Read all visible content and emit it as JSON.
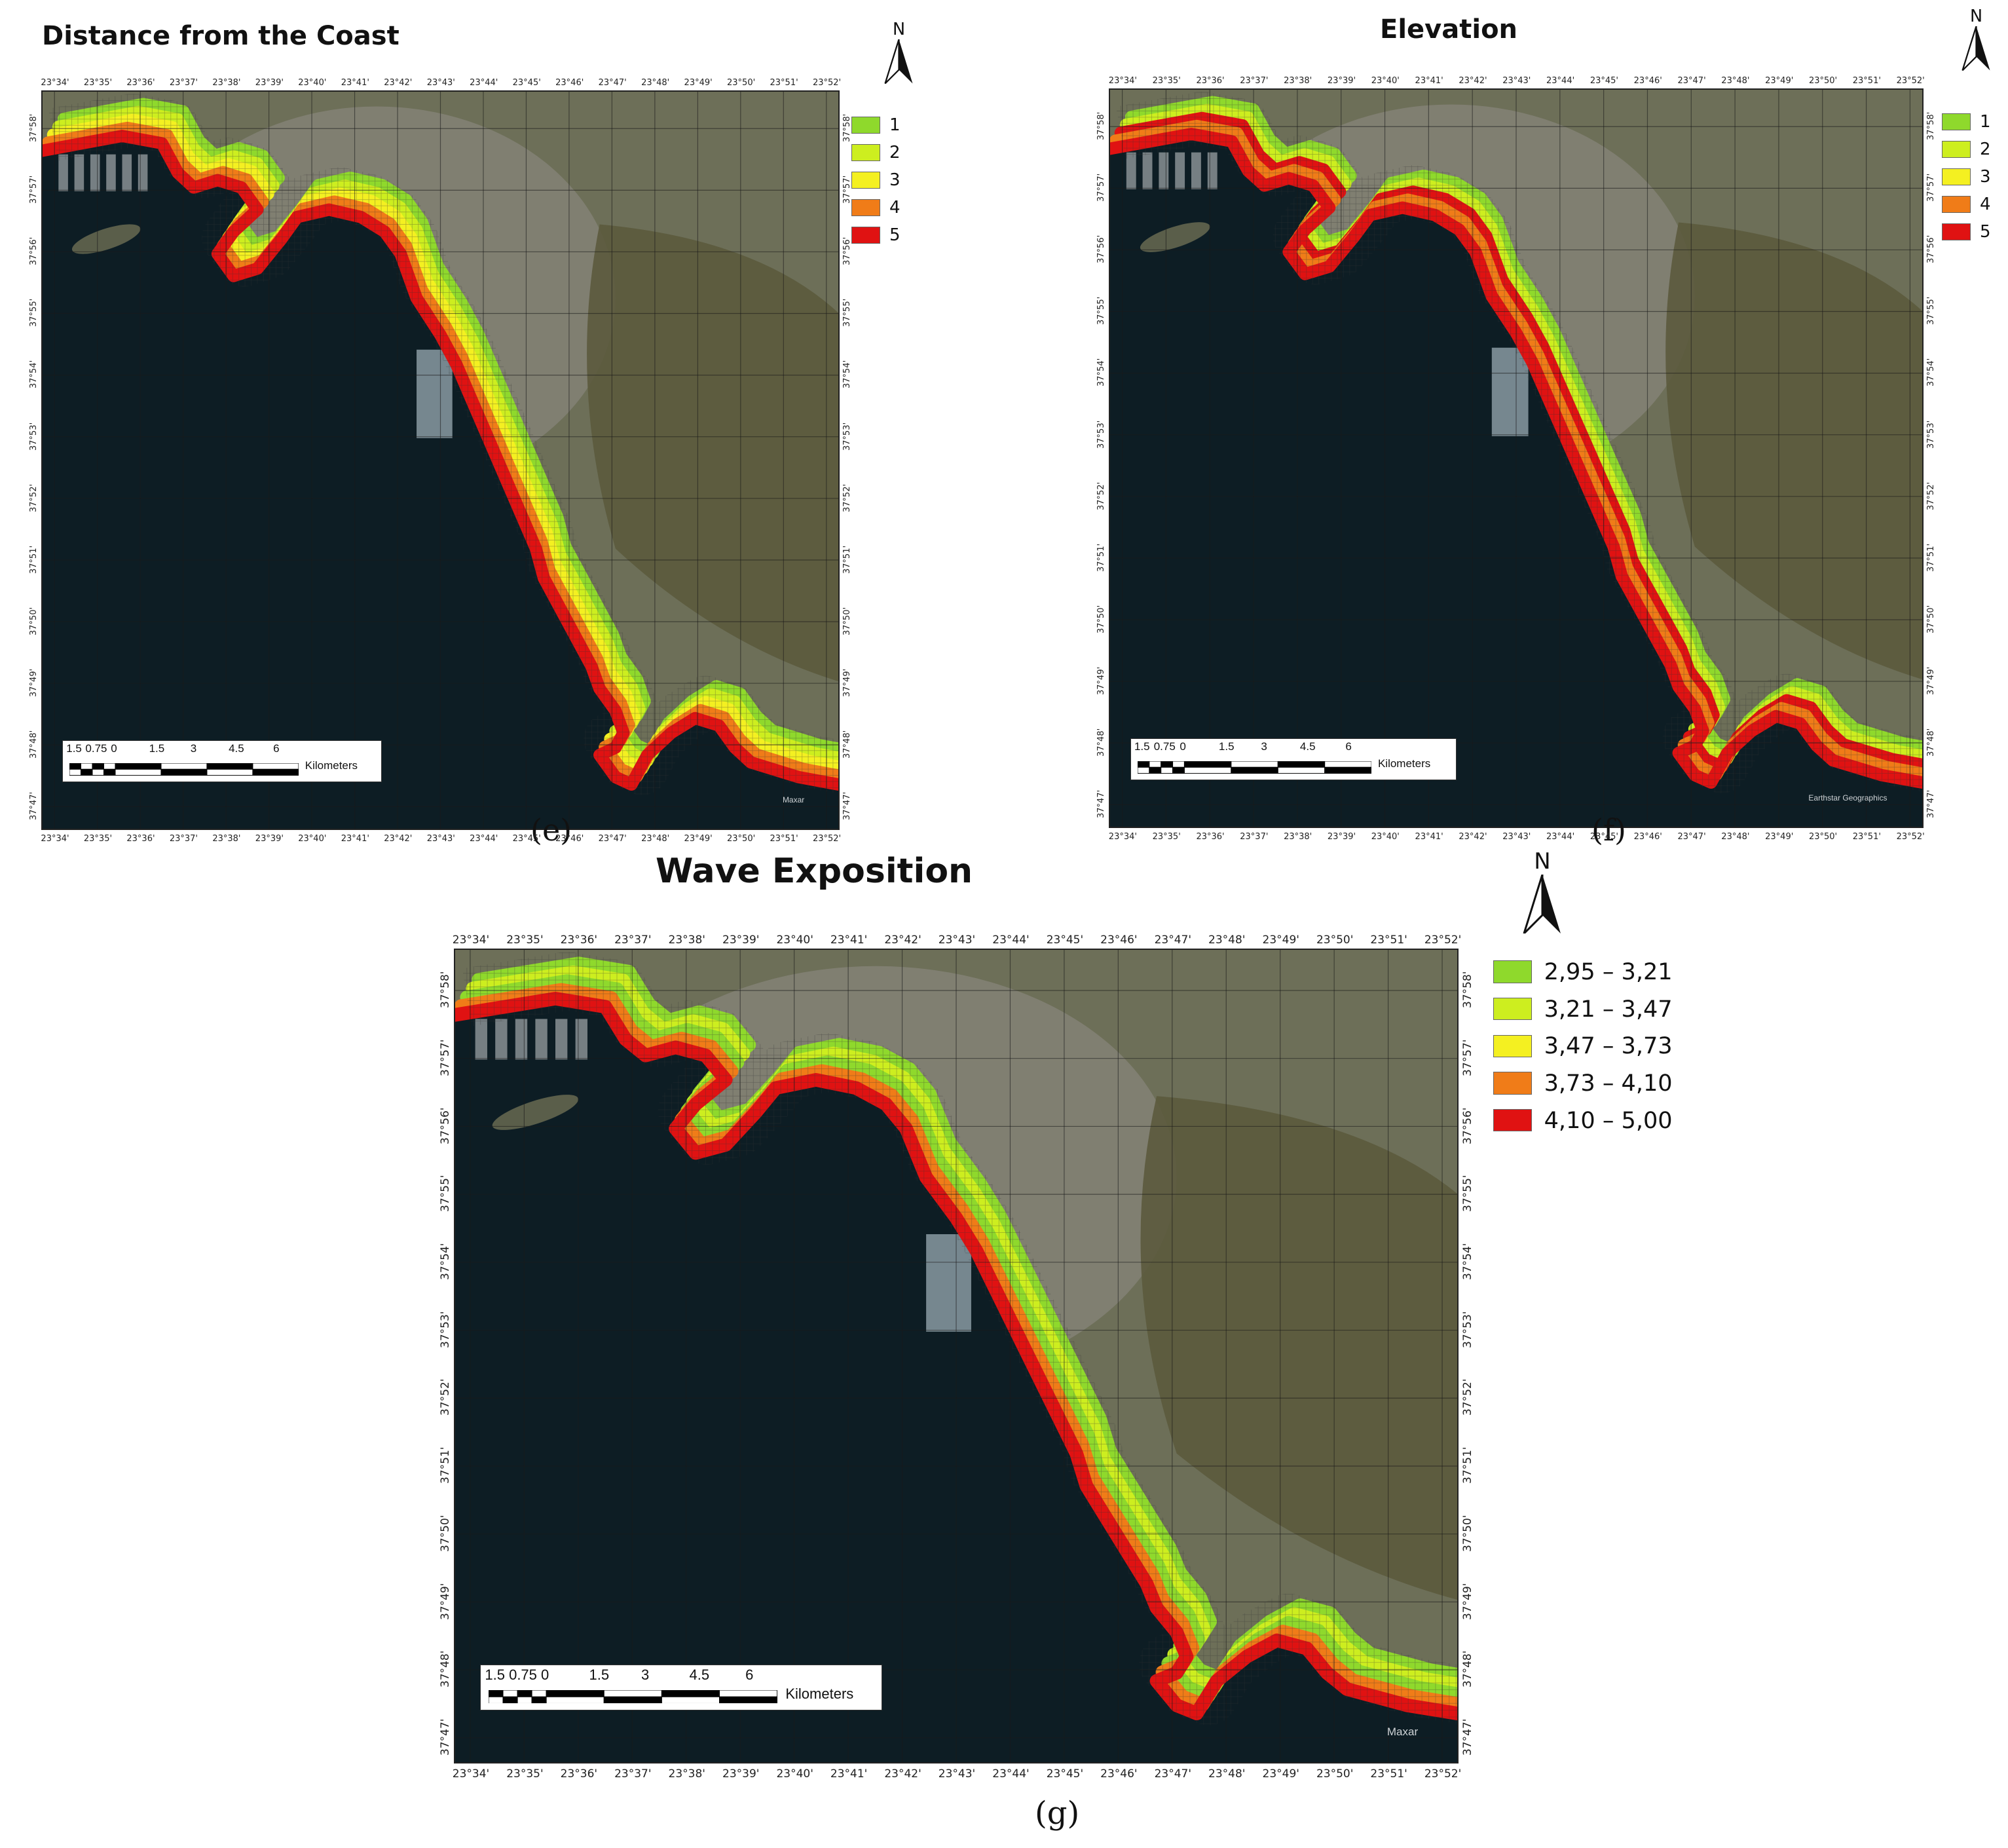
{
  "lon_labels": [
    "23°34'",
    "23°35'",
    "23°36'",
    "23°37'",
    "23°38'",
    "23°39'",
    "23°40'",
    "23°41'",
    "23°42'",
    "23°43'",
    "23°44'",
    "23°45'",
    "23°46'",
    "23°47'",
    "23°48'",
    "23°49'",
    "23°50'",
    "23°51'",
    "23°52'"
  ],
  "lat_labels": [
    "37°58'",
    "37°57'",
    "37°56'",
    "37°55'",
    "37°54'",
    "37°53'",
    "37°52'",
    "37°51'",
    "37°50'",
    "37°49'",
    "37°48'",
    "37°47'"
  ],
  "north_label": "N",
  "scale_numbers": [
    "1.5",
    "0.75",
    "0",
    "1.5",
    "3",
    "4.5",
    "6"
  ],
  "scale_unit": "Kilometers",
  "colors": {
    "class1": "#8fd92c",
    "class2": "#cdee1f",
    "class3": "#f4f021",
    "class4": "#f07c18",
    "class5": "#e01212",
    "land": "#6d6f58",
    "urban": "#8f8d86",
    "sea": "#0d1d24",
    "hills": "#5b5a3d"
  },
  "panels": [
    {
      "id": "e",
      "title": "Distance from the Coast",
      "caption": "(e)",
      "credit": "Maxar",
      "legend": [
        {
          "label": "1",
          "color": "#8fd92c"
        },
        {
          "label": "2",
          "color": "#cdee1f"
        },
        {
          "label": "3",
          "color": "#f4f021"
        },
        {
          "label": "4",
          "color": "#f07c18"
        },
        {
          "label": "5",
          "color": "#e01212"
        }
      ]
    },
    {
      "id": "f",
      "title": "Elevation",
      "caption": "(f)",
      "credit": "Earthstar Geographics",
      "legend": [
        {
          "label": "1",
          "color": "#8fd92c"
        },
        {
          "label": "2",
          "color": "#cdee1f"
        },
        {
          "label": "3",
          "color": "#f4f021"
        },
        {
          "label": "4",
          "color": "#f07c18"
        },
        {
          "label": "5",
          "color": "#e01212"
        }
      ]
    },
    {
      "id": "g",
      "title": "Wave Exposition",
      "caption": "(g)",
      "credit": "Maxar",
      "legend": [
        {
          "label": "2,95 – 3,21",
          "color": "#8fd92c"
        },
        {
          "label": "3,21 – 3,47",
          "color": "#cdee1f"
        },
        {
          "label": "3,47 – 3,73",
          "color": "#f4f021"
        },
        {
          "label": "3,73 – 4,10",
          "color": "#f07c18"
        },
        {
          "label": "4,10 – 5,00",
          "color": "#e01212"
        }
      ]
    }
  ]
}
